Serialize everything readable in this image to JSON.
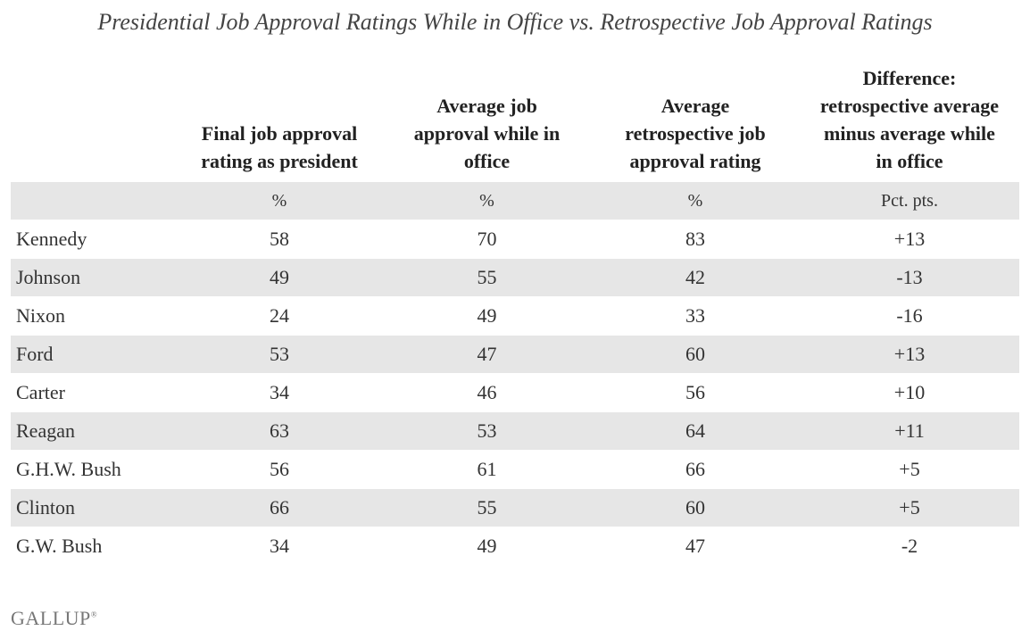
{
  "title": "Presidential Job Approval Ratings While in Office vs. Retrospective Job Approval Ratings",
  "table": {
    "headers": [
      "Final job approval rating as president",
      "Average job approval while in office",
      "Average retrospective job approval rating",
      "Difference: retrospective average minus average while in office"
    ],
    "units": [
      "%",
      "%",
      "%",
      "Pct. pts."
    ],
    "rows": [
      [
        "Kennedy",
        "58",
        "70",
        "83",
        "+13"
      ],
      [
        "Johnson",
        "49",
        "55",
        "42",
        "-13"
      ],
      [
        "Nixon",
        "24",
        "49",
        "33",
        "-16"
      ],
      [
        "Ford",
        "53",
        "47",
        "60",
        "+13"
      ],
      [
        "Carter",
        "34",
        "46",
        "56",
        "+10"
      ],
      [
        "Reagan",
        "63",
        "53",
        "64",
        "+11"
      ],
      [
        "G.H.W. Bush",
        "56",
        "61",
        "66",
        "+5"
      ],
      [
        "Clinton",
        "66",
        "55",
        "60",
        "+5"
      ],
      [
        "G.W. Bush",
        "34",
        "49",
        "47",
        "-2"
      ]
    ]
  },
  "footer": {
    "logo": "GALLUP",
    "mark": "®"
  }
}
